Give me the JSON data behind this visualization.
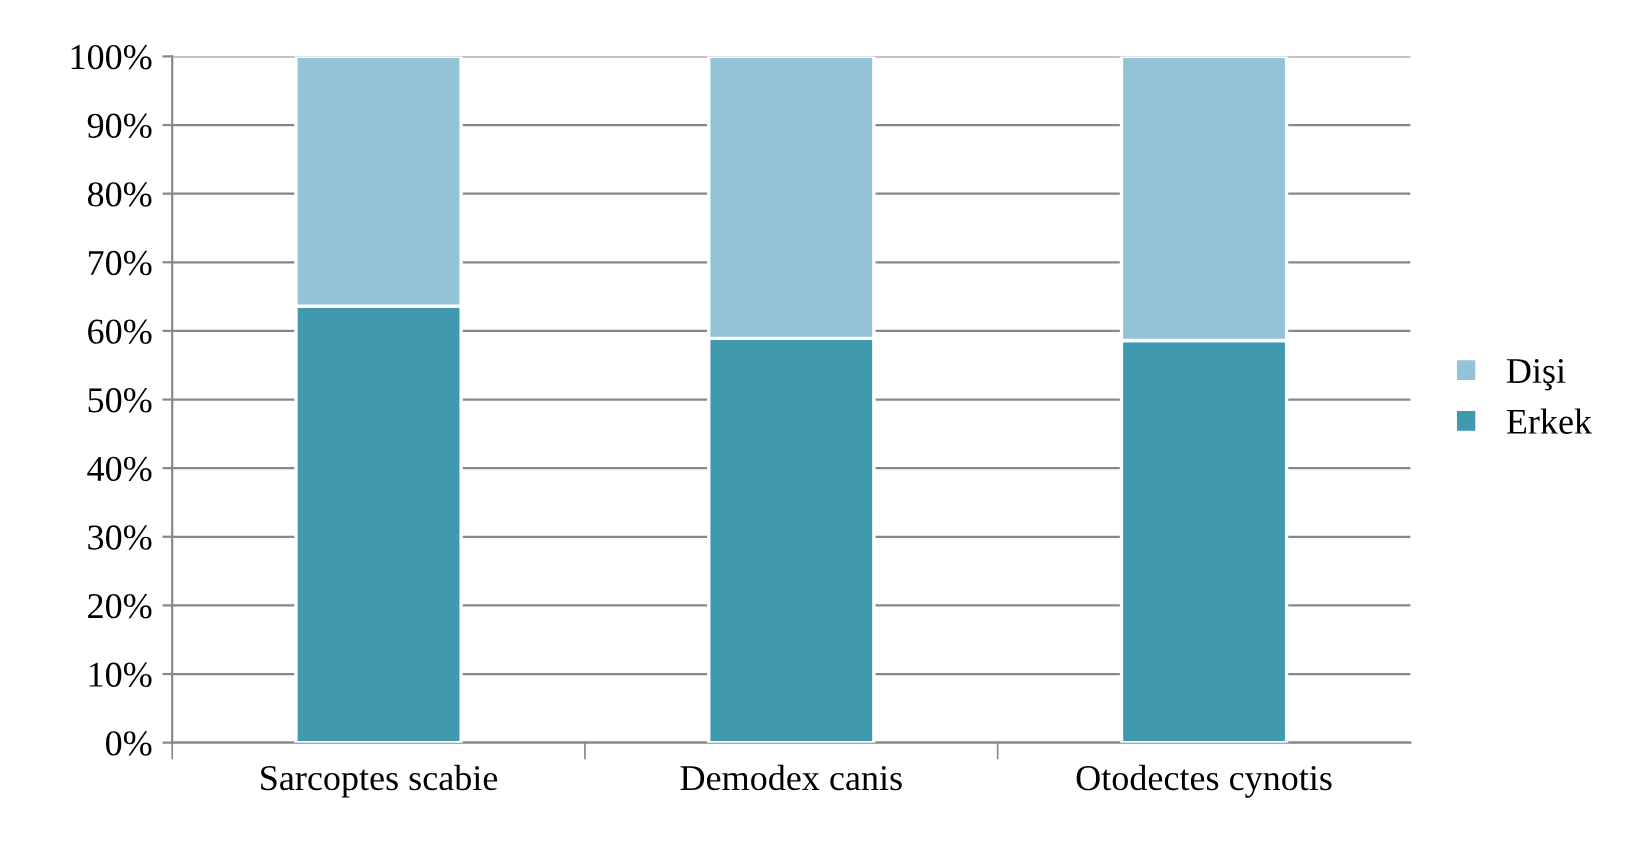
{
  "chart_data": {
    "type": "bar",
    "stacked": true,
    "categories": [
      "Sarcoptes scabie",
      "Demodex canis",
      "Otodectes cynotis"
    ],
    "series": [
      {
        "name": "Erkek",
        "color": "#4199b0",
        "values": [
          63.6,
          58.9,
          58.6
        ]
      },
      {
        "name": "Dişi",
        "color": "#93c3d6",
        "values": [
          36.4,
          41.1,
          41.4
        ]
      }
    ],
    "ylim": [
      0,
      100
    ],
    "yticks": [
      {
        "value": 0,
        "label": "0%"
      },
      {
        "value": 10,
        "label": "10%"
      },
      {
        "value": 20,
        "label": "20%"
      },
      {
        "value": 30,
        "label": "30%"
      },
      {
        "value": 40,
        "label": "40%"
      },
      {
        "value": 50,
        "label": "50%"
      },
      {
        "value": 60,
        "label": "60%"
      },
      {
        "value": 70,
        "label": "70%"
      },
      {
        "value": 80,
        "label": "80%"
      },
      {
        "value": 90,
        "label": "90%"
      },
      {
        "value": 100,
        "label": "100%"
      }
    ],
    "grid": "y",
    "legend": "right"
  }
}
